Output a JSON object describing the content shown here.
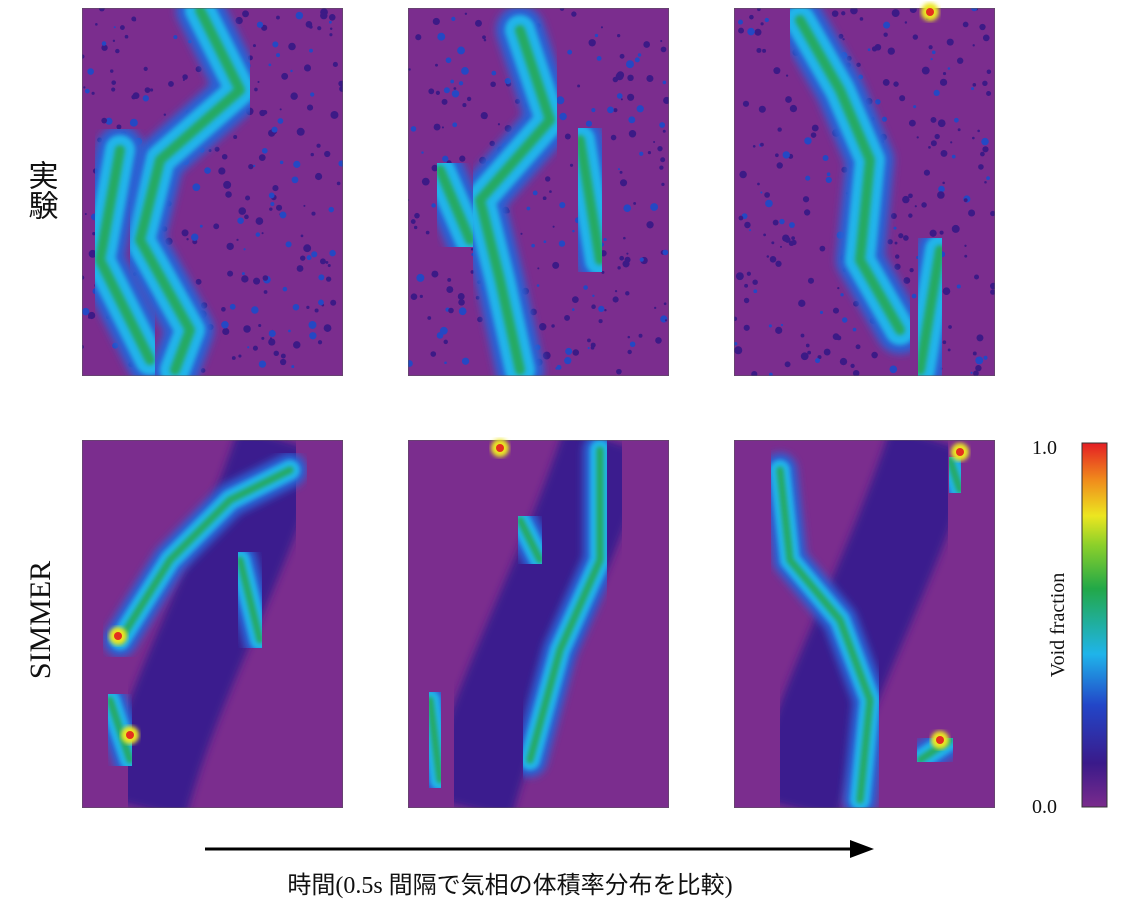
{
  "row_labels": [
    "実験",
    "SIMMER"
  ],
  "colorbar": {
    "label": "Void fraction",
    "range": [
      0,
      1
    ],
    "ticks": [
      {
        "value": 0,
        "label": "0.0"
      },
      {
        "value": 1,
        "label": "1.0"
      }
    ]
  },
  "caption": "時間(0.5s 間隔で気相の体積率分布を比較)"
}
